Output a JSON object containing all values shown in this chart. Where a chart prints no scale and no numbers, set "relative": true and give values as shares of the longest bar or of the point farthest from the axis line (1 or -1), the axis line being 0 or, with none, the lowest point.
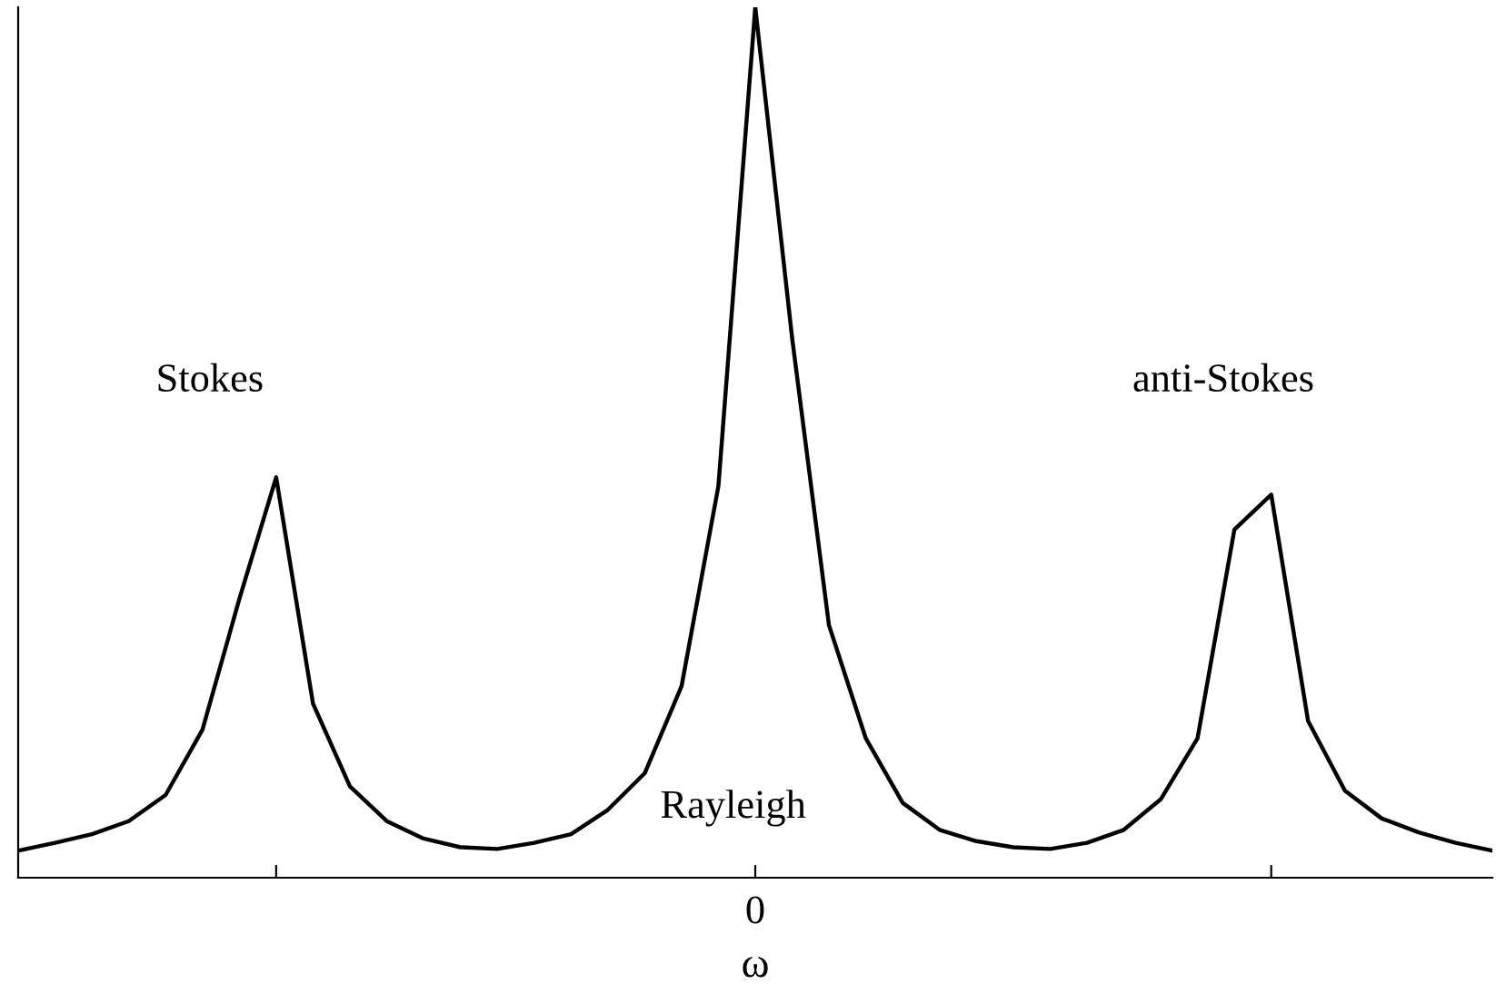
{
  "chart_data": {
    "type": "line",
    "xlabel": "ω",
    "relative": true,
    "categories": [
      null,
      null,
      null,
      null,
      null,
      null,
      null,
      null,
      null,
      null,
      null,
      null,
      null,
      null,
      null,
      null,
      null,
      null,
      null,
      null,
      null,
      null,
      null,
      null,
      null,
      null,
      null,
      null,
      null,
      null,
      null,
      null,
      null,
      null,
      null,
      null,
      null,
      null,
      null,
      null,
      null
    ],
    "series": [
      {
        "color": "#000000",
        "values": [
          0.031,
          0.04,
          0.05,
          0.065,
          0.095,
          0.17,
          0.32,
          0.46,
          0.2,
          0.105,
          0.065,
          0.045,
          0.035,
          0.033,
          0.04,
          0.05,
          0.078,
          0.12,
          0.22,
          0.45,
          1.0,
          0.62,
          0.29,
          0.16,
          0.086,
          0.055,
          0.042,
          0.035,
          0.033,
          0.04,
          0.055,
          0.09,
          0.16,
          0.4,
          0.44,
          0.18,
          0.1,
          0.068,
          0.052,
          0.04,
          0.031
        ]
      }
    ],
    "annotations": [
      "Stokes",
      "anti-Stokes",
      "Rayleigh",
      "0"
    ],
    "grid": false,
    "legend": false,
    "marker": "none",
    "line_style": "solid"
  }
}
